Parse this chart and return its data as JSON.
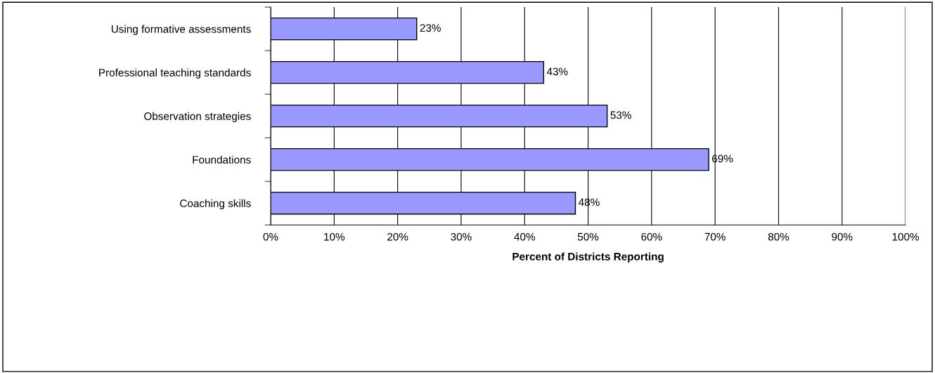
{
  "chart_data": {
    "type": "bar",
    "orientation": "horizontal",
    "xlabel": "Percent of Districts Reporting",
    "categories": [
      "Using formative assessments",
      "Professional teaching standards",
      "Observation strategies",
      "Foundations",
      "Coaching skills"
    ],
    "values": [
      23,
      43,
      53,
      69,
      48
    ],
    "value_labels": [
      "23%",
      "43%",
      "53%",
      "69%",
      "48%"
    ],
    "color": "#9999ff",
    "xlim": [
      0,
      100
    ],
    "xticks": [
      {
        "value": 0,
        "label": "0%"
      },
      {
        "value": 10,
        "label": "10%"
      },
      {
        "value": 20,
        "label": "20%"
      },
      {
        "value": 30,
        "label": "30%"
      },
      {
        "value": 40,
        "label": "40%"
      },
      {
        "value": 50,
        "label": "50%"
      },
      {
        "value": 60,
        "label": "60%"
      },
      {
        "value": 70,
        "label": "70%"
      },
      {
        "value": 80,
        "label": "80%"
      },
      {
        "value": 90,
        "label": "90%"
      },
      {
        "value": 100,
        "label": "100%"
      }
    ],
    "grid": "x"
  }
}
